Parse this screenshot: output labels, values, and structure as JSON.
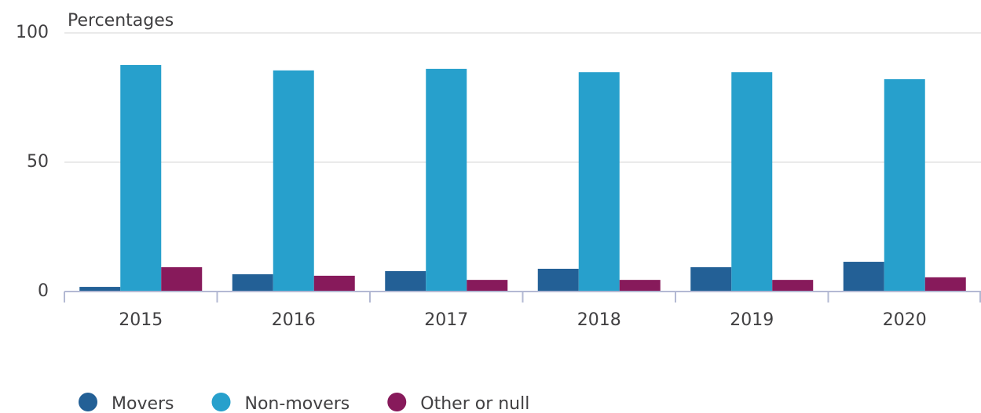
{
  "chart_data": {
    "type": "bar",
    "y_label": "Percentages",
    "categories": [
      "2015",
      "2016",
      "2017",
      "2018",
      "2019",
      "2020"
    ],
    "series": [
      {
        "name": "Movers",
        "color": "#236096",
        "values": [
          1.8,
          6.7,
          7.9,
          8.8,
          9.4,
          11.5
        ]
      },
      {
        "name": "Non-movers",
        "color": "#27a0cc",
        "values": [
          87.6,
          85.5,
          86.1,
          84.8,
          84.8,
          82.1
        ]
      },
      {
        "name": "Other or null",
        "color": "#871a5b",
        "values": [
          9.4,
          6.1,
          4.5,
          4.5,
          4.5,
          5.5
        ]
      }
    ],
    "ylim": [
      0,
      100
    ],
    "yticks": [
      0,
      50,
      100
    ],
    "grid": true,
    "legend": "bottom"
  }
}
